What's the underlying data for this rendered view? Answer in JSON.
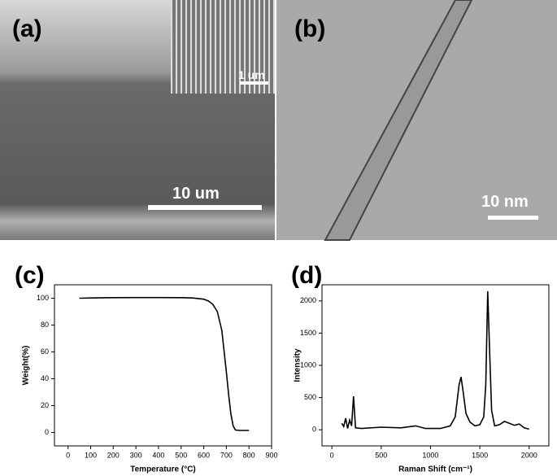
{
  "panels": [
    {
      "label": "(a)",
      "scale_bar": "10 um",
      "inset_scale_bar": "1 um"
    },
    {
      "label": "(b)",
      "scale_bar": "10 nm"
    },
    {
      "label": "(c)"
    },
    {
      "label": "(d)"
    }
  ],
  "chart_data": [
    {
      "type": "line",
      "x_label": "Temperature (°C)",
      "y_label": "Weight(%)",
      "color": "#000000",
      "x": [
        50,
        100,
        200,
        300,
        400,
        500,
        550,
        600,
        620,
        640,
        660,
        680,
        700,
        710,
        720,
        730,
        740,
        760,
        800
      ],
      "y": [
        100,
        100.2,
        100.4,
        100.5,
        100.5,
        100.4,
        100.2,
        99.3,
        98,
        95.5,
        90,
        76,
        45,
        28,
        14,
        5,
        1.8,
        1.5,
        1.5
      ],
      "xlim": [
        -60,
        900
      ],
      "ylim": [
        -10,
        110
      ],
      "xticks": [
        0,
        100,
        200,
        300,
        400,
        500,
        600,
        700,
        800,
        900
      ],
      "yticks": [
        0,
        20,
        40,
        60,
        80,
        100
      ]
    },
    {
      "type": "line",
      "x_label": "Raman Shift (cm⁻¹)",
      "y_label": "Intensity",
      "color": "#000000",
      "x": [
        100,
        120,
        140,
        160,
        180,
        200,
        220,
        240,
        300,
        500,
        700,
        850,
        950,
        1100,
        1200,
        1250,
        1290,
        1310,
        1330,
        1360,
        1400,
        1450,
        1500,
        1540,
        1560,
        1580,
        1600,
        1620,
        1650,
        1700,
        1750,
        1800,
        1850,
        1900,
        1950,
        2000
      ],
      "y": [
        100,
        50,
        180,
        20,
        150,
        60,
        520,
        30,
        20,
        40,
        30,
        60,
        20,
        20,
        60,
        200,
        700,
        820,
        600,
        250,
        120,
        60,
        80,
        200,
        700,
        2150,
        1200,
        300,
        60,
        80,
        130,
        100,
        70,
        90,
        30,
        10
      ],
      "xlim": [
        -100,
        2200
      ],
      "ylim": [
        -250,
        2250
      ],
      "xticks": [
        0,
        500,
        1000,
        1500,
        2000
      ],
      "yticks": [
        0,
        500,
        1000,
        1500,
        2000
      ]
    }
  ]
}
